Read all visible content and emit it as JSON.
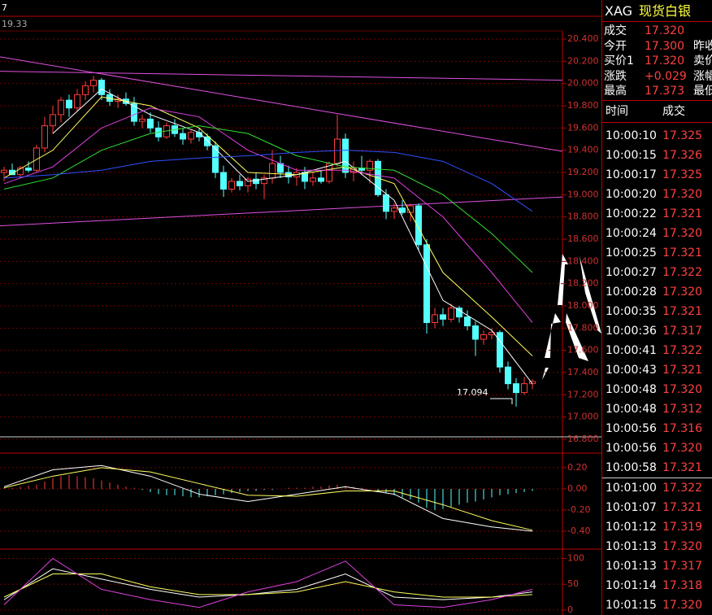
{
  "top_bar": {
    "label": "7",
    "price": "19.33"
  },
  "chart_data": [
    {
      "type": "candlestick",
      "up_color": "#ff3c3c",
      "down_color": "#54ffff",
      "grid": true,
      "open": [
        19.2,
        19.22,
        19.18,
        19.24,
        19.22,
        19.42,
        19.62,
        19.72,
        19.85,
        19.78,
        19.9,
        19.98,
        20.03,
        19.9,
        19.84,
        19.86,
        19.82,
        19.66,
        19.68,
        19.6,
        19.52,
        19.62,
        19.55,
        19.5,
        19.56,
        19.52,
        19.44,
        19.2,
        19.05,
        19.12,
        19.08,
        19.14,
        19.1,
        19.15,
        19.28,
        19.2,
        19.16,
        19.2,
        19.12,
        19.15,
        19.12,
        19.28,
        19.5,
        19.2,
        19.24,
        19.22,
        19.3,
        19.0,
        18.85,
        18.88,
        18.84,
        18.9,
        18.55,
        17.85,
        17.92,
        17.88,
        17.98,
        17.9,
        17.82,
        17.7,
        17.74,
        17.76,
        17.45,
        17.3,
        17.22,
        17.3
      ],
      "high": [
        19.25,
        19.28,
        19.26,
        19.3,
        19.45,
        19.7,
        19.8,
        19.88,
        19.9,
        19.95,
        20.02,
        20.07,
        20.05,
        19.95,
        19.9,
        19.92,
        19.88,
        19.72,
        19.74,
        19.66,
        19.65,
        19.68,
        19.6,
        19.58,
        19.6,
        19.55,
        19.48,
        19.26,
        19.15,
        19.18,
        19.16,
        19.2,
        19.18,
        19.4,
        19.35,
        19.26,
        19.24,
        19.25,
        19.2,
        19.22,
        19.3,
        19.72,
        19.55,
        19.3,
        19.35,
        19.32,
        19.32,
        19.05,
        18.92,
        18.95,
        18.92,
        18.92,
        18.6,
        17.98,
        17.98,
        18.02,
        18.0,
        17.96,
        17.86,
        17.78,
        17.8,
        17.78,
        17.5,
        17.35,
        17.36,
        17.34
      ],
      "low": [
        19.12,
        19.18,
        19.15,
        19.2,
        19.2,
        19.38,
        19.55,
        19.65,
        19.7,
        19.75,
        19.85,
        19.92,
        19.85,
        19.8,
        19.78,
        19.8,
        19.62,
        19.6,
        19.56,
        19.48,
        19.5,
        19.52,
        19.45,
        19.46,
        19.48,
        19.4,
        19.15,
        18.98,
        19.02,
        19.04,
        19.02,
        19.05,
        18.96,
        19.1,
        19.15,
        19.1,
        19.08,
        19.05,
        19.08,
        19.1,
        19.1,
        19.25,
        19.15,
        19.12,
        19.18,
        19.1,
        18.98,
        18.78,
        18.78,
        18.82,
        18.76,
        18.5,
        17.75,
        17.8,
        17.82,
        17.85,
        17.85,
        17.78,
        17.55,
        17.65,
        17.7,
        17.4,
        17.25,
        17.094,
        17.2,
        17.25
      ],
      "close": [
        19.22,
        19.18,
        19.24,
        19.22,
        19.42,
        19.62,
        19.72,
        19.85,
        19.78,
        19.9,
        19.98,
        20.03,
        19.9,
        19.84,
        19.86,
        19.82,
        19.66,
        19.68,
        19.6,
        19.52,
        19.62,
        19.55,
        19.5,
        19.56,
        19.52,
        19.44,
        19.2,
        19.05,
        19.12,
        19.08,
        19.14,
        19.1,
        19.15,
        19.28,
        19.2,
        19.16,
        19.2,
        19.12,
        19.15,
        19.12,
        19.28,
        19.5,
        19.2,
        19.24,
        19.22,
        19.3,
        19.0,
        18.85,
        18.88,
        18.84,
        18.9,
        18.55,
        17.85,
        17.92,
        17.88,
        17.98,
        17.9,
        17.82,
        17.7,
        17.74,
        17.76,
        17.45,
        17.3,
        17.22,
        17.3,
        17.32
      ],
      "averages": [
        {
          "color": "#ffffff",
          "x": [
            6,
            12,
            18,
            24,
            30,
            36,
            42,
            48,
            54,
            60,
            65
          ],
          "values": [
            19.55,
            19.95,
            19.72,
            19.56,
            19.12,
            19.18,
            19.3,
            18.95,
            18.05,
            17.78,
            17.3
          ]
        },
        {
          "color": "#ffff60",
          "x": [
            0,
            6,
            12,
            18,
            24,
            30,
            36,
            42,
            48,
            54,
            60,
            65
          ],
          "values": [
            19.15,
            19.4,
            19.88,
            19.8,
            19.6,
            19.2,
            19.18,
            19.25,
            19.1,
            18.3,
            17.9,
            17.55
          ]
        },
        {
          "color": "#e040e0",
          "x": [
            0,
            6,
            12,
            18,
            24,
            30,
            36,
            42,
            48,
            54,
            60,
            65
          ],
          "values": [
            19.1,
            19.25,
            19.6,
            19.78,
            19.7,
            19.4,
            19.22,
            19.22,
            19.15,
            18.8,
            18.3,
            17.85
          ]
        },
        {
          "color": "#30e030",
          "x": [
            0,
            6,
            12,
            18,
            24,
            30,
            36,
            42,
            48,
            54,
            60,
            65
          ],
          "values": [
            19.05,
            19.15,
            19.4,
            19.55,
            19.62,
            19.55,
            19.35,
            19.25,
            19.22,
            19.0,
            18.65,
            18.3
          ]
        },
        {
          "color": "#3050ff",
          "x": [
            0,
            6,
            12,
            18,
            24,
            30,
            36,
            42,
            48,
            54,
            60,
            65
          ],
          "values": [
            19.15,
            19.18,
            19.22,
            19.3,
            19.33,
            19.35,
            19.38,
            19.4,
            19.38,
            19.3,
            19.1,
            18.85
          ]
        }
      ],
      "trendline_color": "#e050e0",
      "trendlines": [
        {
          "values": [
            20.24,
            19.39
          ]
        },
        {
          "values": [
            20.11,
            20.03
          ]
        },
        {
          "values": [
            18.72,
            18.98
          ]
        }
      ],
      "annotation": "17.094",
      "ylim": [
        16.8,
        20.4
      ],
      "yticks": [
        {
          "value": 20.4,
          "label": "20.400"
        },
        {
          "value": 20.2,
          "label": "20.200"
        },
        {
          "value": 20.0,
          "label": "20.000"
        },
        {
          "value": 19.8,
          "label": "19.800"
        },
        {
          "value": 19.6,
          "label": "19.600"
        },
        {
          "value": 19.4,
          "label": "19.400"
        },
        {
          "value": 19.2,
          "label": "19.200"
        },
        {
          "value": 19.0,
          "label": "19.000"
        },
        {
          "value": 18.8,
          "label": "18.800"
        },
        {
          "value": 18.6,
          "label": "18.600"
        },
        {
          "value": 18.4,
          "label": "18.400"
        },
        {
          "value": 18.2,
          "label": "18.200"
        },
        {
          "value": 18.0,
          "label": "18.000"
        },
        {
          "value": 17.8,
          "label": "17.800"
        },
        {
          "value": 17.6,
          "label": "17.600"
        },
        {
          "value": 17.4,
          "label": "17.400"
        },
        {
          "value": 17.2,
          "label": "17.200"
        },
        {
          "value": 17.0,
          "label": "17.000"
        },
        {
          "value": 16.8,
          "label": "16.800"
        }
      ]
    },
    {
      "type": "macd",
      "up_color": "#ff3c3c",
      "down_color": "#54ffff",
      "grid": true,
      "histogram": [
        0.01,
        0.01,
        0.02,
        0.03,
        0.04,
        0.07,
        0.1,
        0.12,
        0.13,
        0.12,
        0.11,
        0.1,
        0.08,
        0.06,
        0.04,
        0.02,
        0.01,
        -0.01,
        -0.03,
        -0.05,
        -0.06,
        -0.06,
        -0.07,
        -0.08,
        -0.08,
        -0.07,
        -0.06,
        -0.05,
        -0.04,
        -0.03,
        -0.02,
        -0.02,
        -0.01,
        -0.01,
        0.0,
        0.01,
        0.01,
        0.01,
        0.02,
        0.02,
        0.03,
        0.04,
        0.03,
        0.02,
        0.01,
        0.0,
        -0.02,
        -0.04,
        -0.06,
        -0.08,
        -0.1,
        -0.13,
        -0.18,
        -0.2,
        -0.19,
        -0.17,
        -0.15,
        -0.13,
        -0.12,
        -0.1,
        -0.08,
        -0.06,
        -0.05,
        -0.04,
        -0.03,
        -0.02
      ],
      "series": [
        {
          "color": "#ffffff",
          "x": [
            0,
            6,
            12,
            18,
            24,
            30,
            36,
            42,
            48,
            54,
            60,
            65
          ],
          "values": [
            0.02,
            0.18,
            0.22,
            0.12,
            -0.05,
            -0.12,
            -0.05,
            0.02,
            -0.05,
            -0.28,
            -0.36,
            -0.4
          ]
        },
        {
          "color": "#ffff60",
          "x": [
            0,
            6,
            12,
            18,
            24,
            30,
            36,
            42,
            48,
            54,
            60,
            65
          ],
          "values": [
            0.01,
            0.12,
            0.2,
            0.16,
            0.05,
            -0.06,
            -0.07,
            -0.02,
            -0.02,
            -0.15,
            -0.3,
            -0.39
          ]
        }
      ],
      "ylim": [
        -0.5,
        0.33
      ],
      "yticks": [
        {
          "value": 0.2,
          "label": "0.20"
        },
        {
          "value": 0.0,
          "label": "0.00"
        },
        {
          "value": -0.2,
          "label": "-0.20"
        },
        {
          "value": -0.4,
          "label": "-0.40"
        }
      ]
    },
    {
      "type": "line",
      "grid": true,
      "series": [
        {
          "color": "#ffffff",
          "x": [
            0,
            6,
            12,
            18,
            24,
            30,
            36,
            42,
            48,
            54,
            60,
            65
          ],
          "values": [
            20,
            80,
            60,
            40,
            25,
            30,
            40,
            70,
            25,
            20,
            25,
            35
          ]
        },
        {
          "color": "#ffff60",
          "x": [
            0,
            6,
            12,
            18,
            24,
            30,
            36,
            42,
            48,
            54,
            60,
            65
          ],
          "values": [
            25,
            70,
            70,
            45,
            30,
            30,
            35,
            55,
            35,
            25,
            25,
            30
          ]
        },
        {
          "color": "#e040e0",
          "x": [
            0,
            6,
            12,
            18,
            24,
            30,
            36,
            42,
            48,
            54,
            60,
            65
          ],
          "values": [
            10,
            100,
            40,
            20,
            5,
            35,
            55,
            95,
            10,
            5,
            20,
            40
          ]
        }
      ],
      "ylim": [
        -5,
        115
      ],
      "yticks": [
        100,
        50,
        0
      ]
    }
  ],
  "quote": {
    "symbol": "XAG",
    "name": "现货白银",
    "rows": [
      {
        "label": "成交",
        "value": "17.320"
      },
      {
        "label": "今开",
        "value": "17.300",
        "extra": "昨收"
      },
      {
        "label": "买价1",
        "value": "17.320",
        "extra": "卖价"
      },
      {
        "label": "涨跌",
        "value": "+0.029",
        "extra": "涨幅"
      },
      {
        "label": "最高",
        "value": "17.373",
        "extra": "最低"
      }
    ],
    "time_header": [
      "时间",
      "成交"
    ],
    "trades": [
      [
        "10:00:10",
        "17.325"
      ],
      [
        "10:00:15",
        "17.326"
      ],
      [
        "10:00:17",
        "17.325"
      ],
      [
        "10:00:20",
        "17.320"
      ],
      [
        "10:00:22",
        "17.321"
      ],
      [
        "10:00:24",
        "17.320"
      ],
      [
        "10:00:25",
        "17.321"
      ],
      [
        "10:00:27",
        "17.322"
      ],
      [
        "10:00:28",
        "17.320"
      ],
      [
        "10:00:35",
        "17.321"
      ],
      [
        "10:00:36",
        "17.317"
      ],
      [
        "10:00:41",
        "17.322"
      ],
      [
        "10:00:43",
        "17.321"
      ],
      [
        "10:00:48",
        "17.320"
      ],
      [
        "10:00:48",
        "17.312"
      ],
      [
        "10:00:56",
        "17.316"
      ],
      [
        "10:00:56",
        "17.320"
      ],
      [
        "10:00:58",
        "17.321"
      ],
      [
        "10:01:00",
        "17.322"
      ],
      [
        "10:01:07",
        "17.321"
      ],
      [
        "10:01:12",
        "17.319"
      ],
      [
        "10:01:13",
        "17.320"
      ],
      [
        "10:01:13",
        "17.317"
      ],
      [
        "10:01:14",
        "17.318"
      ],
      [
        "10:01:15",
        "17.320"
      ]
    ]
  }
}
